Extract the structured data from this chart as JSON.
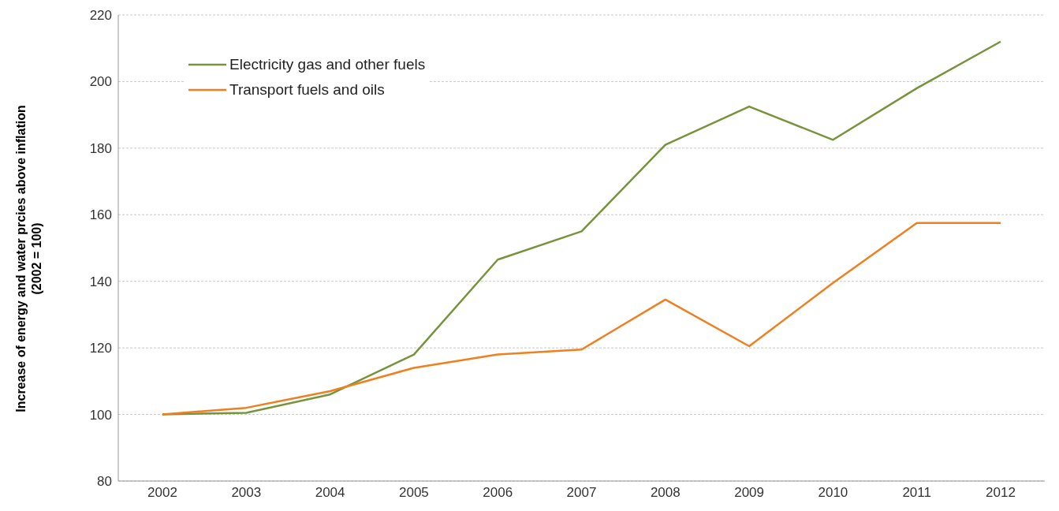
{
  "chart_data": {
    "type": "line",
    "ylabel": "Increase of energy and water prcies above inflation\n(2002 = 100)",
    "categories": [
      "2002",
      "2003",
      "2004",
      "2005",
      "2006",
      "2007",
      "2008",
      "2009",
      "2010",
      "2011",
      "2012"
    ],
    "series": [
      {
        "name": "Electricity gas and other fuels",
        "color": "#77933c",
        "values": [
          100,
          100.5,
          106,
          118,
          146.5,
          155,
          181,
          192.5,
          182.5,
          198,
          212
        ]
      },
      {
        "name": "Transport fuels and oils",
        "color": "#f07f1f",
        "values": [
          100,
          102,
          107,
          114,
          118,
          119.5,
          134.5,
          120.5,
          139.5,
          157.5,
          157.5
        ]
      }
    ],
    "ylim": [
      80,
      220
    ],
    "yticks": [
      80,
      100,
      120,
      140,
      160,
      180,
      200,
      220
    ],
    "grid": "y",
    "legend": "top left",
    "marker": "none",
    "line_style": "solid"
  }
}
